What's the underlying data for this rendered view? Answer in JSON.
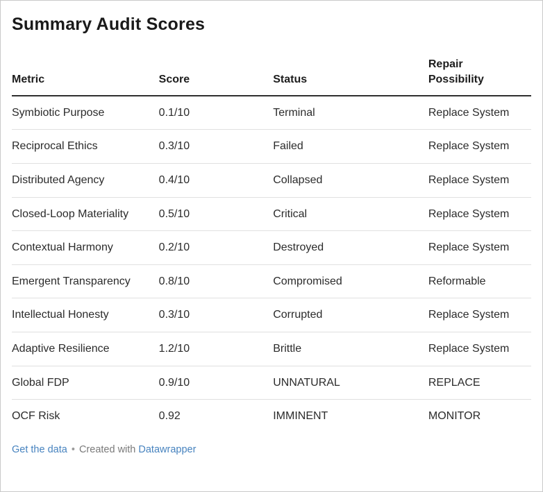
{
  "title": "Summary Audit Scores",
  "chart_data": {
    "type": "table",
    "title": "Summary Audit Scores",
    "columns": [
      "Metric",
      "Score",
      "Status",
      "Repair Possibility"
    ],
    "rows": [
      [
        "Symbiotic Purpose",
        "0.1/10",
        "Terminal",
        "Replace System"
      ],
      [
        "Reciprocal Ethics",
        "0.3/10",
        "Failed",
        "Replace System"
      ],
      [
        "Distributed Agency",
        "0.4/10",
        "Collapsed",
        "Replace System"
      ],
      [
        "Closed-Loop Materiality",
        "0.5/10",
        "Critical",
        "Replace System"
      ],
      [
        "Contextual Harmony",
        "0.2/10",
        "Destroyed",
        "Replace System"
      ],
      [
        "Emergent Transparency",
        "0.8/10",
        "Compromised",
        "Reformable"
      ],
      [
        "Intellectual Honesty",
        "0.3/10",
        "Corrupted",
        "Replace System"
      ],
      [
        "Adaptive Resilience",
        "1.2/10",
        "Brittle",
        "Replace System"
      ],
      [
        "Global FDP",
        "0.9/10",
        "UNNATURAL",
        "REPLACE"
      ],
      [
        "OCF Risk",
        "0.92",
        "IMMINENT",
        "MONITOR"
      ]
    ]
  },
  "footer": {
    "get_data_label": "Get the data",
    "separator": "•",
    "created_with_label": "Created with",
    "datawrapper_label": "Datawrapper"
  },
  "colors": {
    "link_blue": "#4783bf",
    "text_dark": "#2b2b2b",
    "title_dark": "#1a1a1a",
    "muted_gray": "#7a7a7a",
    "row_divider": "#e0e0e0",
    "header_rule": "#2e2e2e",
    "frame_border": "#c9c9c9",
    "background": "#ffffff"
  }
}
